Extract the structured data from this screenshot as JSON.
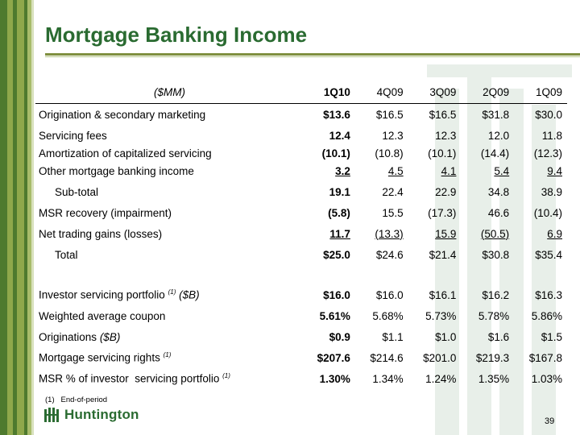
{
  "title": "Mortgage Banking Income",
  "columns": [
    "($MM)",
    "1Q10",
    "4Q09",
    "3Q09",
    "2Q09",
    "1Q09"
  ],
  "rows": [
    {
      "label": "Origination & secondary marketing",
      "values": [
        "$13.6",
        "$16.5",
        "$16.5",
        "$31.8",
        "$30.0"
      ]
    },
    {
      "label": "Servicing fees",
      "values": [
        "12.4",
        "12.3",
        "12.3",
        "12.0",
        "11.8"
      ]
    },
    {
      "label": "Amortization of capitalized servicing",
      "values": [
        "(10.1)",
        "(10.8)",
        "(10.1)",
        "(14.4)",
        "(12.3)"
      ]
    },
    {
      "label": "Other mortgage banking income",
      "values": [
        "3.2",
        "4.5",
        "4.1",
        "5.4",
        "9.4"
      ]
    },
    {
      "label": "Sub-total",
      "values": [
        "19.1",
        "22.4",
        "22.9",
        "34.8",
        "38.9"
      ]
    },
    {
      "label": "MSR recovery (impairment)",
      "values": [
        "(5.8)",
        "15.5",
        "(17.3)",
        "46.6",
        "(10.4)"
      ]
    },
    {
      "label": "Net trading gains (losses)",
      "values": [
        "11.7",
        "(13.3)",
        "15.9",
        "(50.5)",
        "6.9"
      ]
    },
    {
      "label": "Total",
      "values": [
        "$25.0",
        "$24.6",
        "$21.4",
        "$30.8",
        "$35.4"
      ]
    }
  ],
  "metrics": [
    {
      "label": "Investor servicing portfolio",
      "footnote": "(1)",
      "unit": "($B)",
      "values": [
        "$16.0",
        "$16.0",
        "$16.1",
        "$16.2",
        "$16.3"
      ]
    },
    {
      "label": "Weighted average coupon",
      "values": [
        "5.61%",
        "5.68%",
        "5.73%",
        "5.78%",
        "5.86%"
      ]
    },
    {
      "label": "Originations",
      "unit": "($B)",
      "values": [
        "$0.9",
        "$1.1",
        "$1.0",
        "$1.6",
        "$1.5"
      ]
    },
    {
      "label": "Mortgage servicing rights",
      "footnote": "(1)",
      "values": [
        "$207.6",
        "$214.6",
        "$201.0",
        "$219.3",
        "$167.8"
      ]
    },
    {
      "label": "MSR % of investor  servicing portfolio",
      "footnote": "(1)",
      "values": [
        "1.30%",
        "1.34%",
        "1.24%",
        "1.35%",
        "1.03%"
      ]
    }
  ],
  "footnote": "(1)   End-of-period",
  "logo_text": "Huntington",
  "page_number": "39",
  "colors": {
    "title": "#2a6b31",
    "rule": "#7f8f3f",
    "stripe_dark": "#4e7a2e",
    "stripe_light": "#8fa84b",
    "logo": "#2a6b31"
  },
  "icons": {
    "logo": "huntington-logo-icon"
  }
}
